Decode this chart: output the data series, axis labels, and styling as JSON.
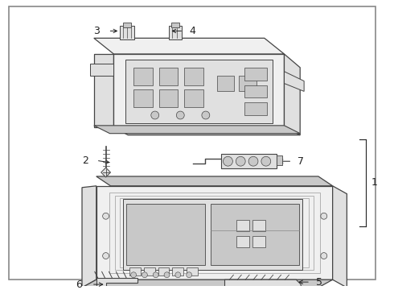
{
  "bg_color": "#ffffff",
  "border_color": "#aaaaaa",
  "part_color": "#444444",
  "label_color": "#222222",
  "light_fill": "#f0f0f0",
  "mid_fill": "#e0e0e0",
  "dark_fill": "#c8c8c8"
}
